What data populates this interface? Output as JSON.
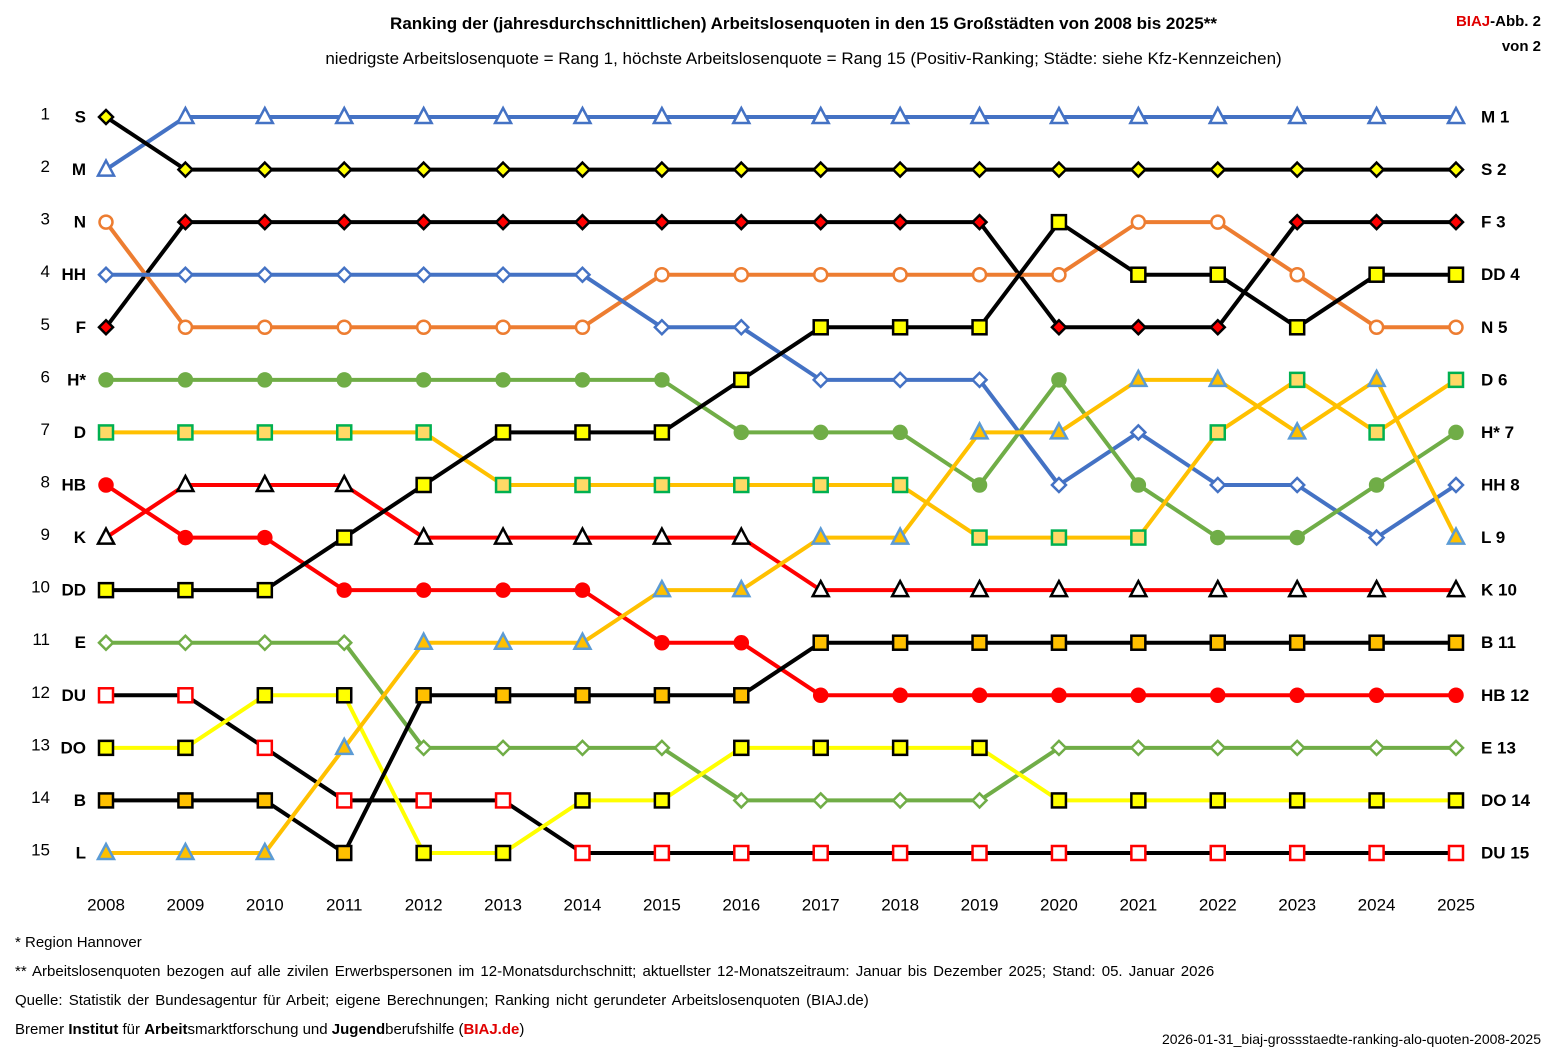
{
  "header": {
    "title": "Ranking der (jahresdurchschnittlichen) Arbeitslosenquoten in den 15 Großstädten von 2008 bis 2025**",
    "subtitle": "niedrigste Arbeitslosenquote = Rang 1, höchste Arbeitslosenquote = Rang 15 (Positiv-Ranking; Städte: siehe Kfz-Kennzeichen)",
    "badge_brand": "BIAJ",
    "badge_rest": "-Abb. 2",
    "badge_line2": "von 2"
  },
  "footer": {
    "note1": "* Region Hannover",
    "note2": "** Arbeitslosenquoten bezogen auf alle zivilen Erwerbspersonen im 12-Monatsdurchschnitt; aktuellster 12-Monatszeitraum: Januar bis Dezember 2025; Stand: 05. Januar 2026",
    "source": "Quelle: Statistik der Bundesagentur für Arbeit; eigene Berechnungen; Ranking nicht gerundeter Arbeitslosenquoten (BIAJ.de)",
    "org": [
      {
        "t": "Bremer ",
        "b": false
      },
      {
        "t": "Institut",
        "b": true
      },
      {
        "t": " für ",
        "b": false
      },
      {
        "t": "Arbeit",
        "b": true
      },
      {
        "t": "smarktforschung und ",
        "b": false
      },
      {
        "t": "Jugend",
        "b": true
      },
      {
        "t": "berufshilfe (",
        "b": false
      },
      {
        "t": "BIAJ.de",
        "b": true,
        "red": true
      },
      {
        "t": ")",
        "b": false
      }
    ],
    "filename": "2026-01-31_biaj-grossstaedte-ranking-alo-quoten-2008-2025"
  },
  "chart_data": {
    "type": "line",
    "subtype": "bump",
    "title": "Ranking der (jahresdurchschnittlichen) Arbeitslosenquoten in den 15 Großstädten von 2008 bis 2025**",
    "x": [
      2008,
      2009,
      2010,
      2011,
      2012,
      2013,
      2014,
      2015,
      2016,
      2017,
      2018,
      2019,
      2020,
      2021,
      2022,
      2023,
      2024,
      2025
    ],
    "ylim": [
      1,
      15
    ],
    "y_inverted": true,
    "y_ticks": [
      1,
      2,
      3,
      4,
      5,
      6,
      7,
      8,
      9,
      10,
      11,
      12,
      13,
      14,
      15
    ],
    "grid": false,
    "legend": "none",
    "left_labels": [
      "S",
      "M",
      "N",
      "HH",
      "F",
      "H*",
      "D",
      "HB",
      "K",
      "DD",
      "E",
      "DU",
      "DO",
      "B",
      "L"
    ],
    "right_labels": [
      "M 1",
      "S 2",
      "F 3",
      "DD 4",
      "N 5",
      "D 6",
      "H* 7",
      "HH 8",
      "L 9",
      "K 10",
      "B 11",
      "HB 12",
      "E 13",
      "DO 14",
      "DU 15"
    ],
    "series": [
      {
        "name": "M",
        "line": "#4472c4",
        "marker": "triangle",
        "fill": "#ffffff",
        "stroke": "#4472c4",
        "values": [
          2,
          1,
          1,
          1,
          1,
          1,
          1,
          1,
          1,
          1,
          1,
          1,
          1,
          1,
          1,
          1,
          1,
          1
        ]
      },
      {
        "name": "S",
        "line": "#000000",
        "marker": "diamond",
        "fill": "#ffff00",
        "stroke": "#000000",
        "values": [
          1,
          2,
          2,
          2,
          2,
          2,
          2,
          2,
          2,
          2,
          2,
          2,
          2,
          2,
          2,
          2,
          2,
          2
        ]
      },
      {
        "name": "F",
        "line": "#000000",
        "marker": "diamond",
        "fill": "#ff0000",
        "stroke": "#000000",
        "values": [
          5,
          3,
          3,
          3,
          3,
          3,
          3,
          3,
          3,
          3,
          3,
          3,
          5,
          5,
          5,
          3,
          3,
          3
        ]
      },
      {
        "name": "N",
        "line": "#ed7d31",
        "marker": "circle",
        "fill": "#ffffff",
        "stroke": "#ed7d31",
        "values": [
          3,
          5,
          5,
          5,
          5,
          5,
          5,
          4,
          4,
          4,
          4,
          4,
          4,
          3,
          3,
          4,
          5,
          5
        ]
      },
      {
        "name": "HH",
        "line": "#4472c4",
        "marker": "diamond",
        "fill": "#ffffff",
        "stroke": "#4472c4",
        "values": [
          4,
          4,
          4,
          4,
          4,
          4,
          4,
          5,
          5,
          6,
          6,
          6,
          8,
          7,
          8,
          8,
          9,
          8
        ]
      },
      {
        "name": "H*",
        "line": "#70ad47",
        "marker": "circle",
        "fill": "#70ad47",
        "stroke": "#70ad47",
        "values": [
          6,
          6,
          6,
          6,
          6,
          6,
          6,
          6,
          7,
          7,
          7,
          8,
          6,
          8,
          9,
          9,
          8,
          7
        ]
      },
      {
        "name": "D",
        "line": "#ffc000",
        "marker": "square",
        "fill": "#ffd966",
        "stroke": "#00b050",
        "values": [
          7,
          7,
          7,
          7,
          7,
          8,
          8,
          8,
          8,
          8,
          8,
          9,
          9,
          9,
          7,
          6,
          7,
          6
        ]
      },
      {
        "name": "HB",
        "line": "#ff0000",
        "marker": "circle",
        "fill": "#ff0000",
        "stroke": "#ff0000",
        "values": [
          8,
          9,
          9,
          10,
          10,
          10,
          10,
          11,
          11,
          12,
          12,
          12,
          12,
          12,
          12,
          12,
          12,
          12
        ]
      },
      {
        "name": "K",
        "line": "#ff0000",
        "marker": "triangle",
        "fill": "#ffffff",
        "stroke": "#000000",
        "values": [
          9,
          8,
          8,
          8,
          9,
          9,
          9,
          9,
          9,
          10,
          10,
          10,
          10,
          10,
          10,
          10,
          10,
          10
        ]
      },
      {
        "name": "DD",
        "line": "#000000",
        "marker": "square",
        "fill": "#ffff00",
        "stroke": "#000000",
        "values": [
          10,
          10,
          10,
          9,
          8,
          7,
          7,
          7,
          6,
          5,
          5,
          5,
          3,
          4,
          4,
          5,
          4,
          4
        ]
      },
      {
        "name": "E",
        "line": "#70ad47",
        "marker": "diamond",
        "fill": "#ffffff",
        "stroke": "#70ad47",
        "values": [
          11,
          11,
          11,
          11,
          13,
          13,
          13,
          13,
          14,
          14,
          14,
          14,
          13,
          13,
          13,
          13,
          13,
          13
        ]
      },
      {
        "name": "DU",
        "line": "#000000",
        "marker": "square",
        "fill": "#ffffff",
        "stroke": "#ff0000",
        "values": [
          12,
          12,
          13,
          14,
          14,
          14,
          15,
          15,
          15,
          15,
          15,
          15,
          15,
          15,
          15,
          15,
          15,
          15
        ]
      },
      {
        "name": "DO",
        "line": "#ffff00",
        "marker": "square",
        "fill": "#ffff00",
        "stroke": "#000000",
        "values": [
          13,
          13,
          12,
          12,
          15,
          15,
          14,
          14,
          13,
          13,
          13,
          13,
          14,
          14,
          14,
          14,
          14,
          14
        ]
      },
      {
        "name": "B",
        "line": "#000000",
        "marker": "square",
        "fill": "#ffc000",
        "stroke": "#000000",
        "values": [
          14,
          14,
          14,
          15,
          12,
          12,
          12,
          12,
          12,
          11,
          11,
          11,
          11,
          11,
          11,
          11,
          11,
          11
        ]
      },
      {
        "name": "L",
        "line": "#ffc000",
        "marker": "triangle",
        "fill": "#ffc000",
        "stroke": "#5b9bd5",
        "values": [
          15,
          15,
          15,
          13,
          11,
          11,
          11,
          10,
          10,
          9,
          9,
          7,
          7,
          6,
          6,
          7,
          6,
          9
        ]
      }
    ]
  }
}
